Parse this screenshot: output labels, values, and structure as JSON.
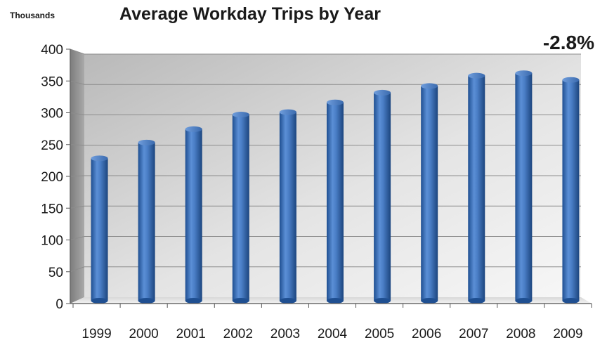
{
  "chart_data": {
    "type": "bar",
    "title": "Average Workday Trips by Year",
    "ylabel": "Thousands",
    "xlabel": "",
    "annotation": "-2.8%",
    "categories": [
      "1999",
      "2000",
      "2001",
      "2002",
      "2003",
      "2004",
      "2005",
      "2006",
      "2007",
      "2008",
      "2009"
    ],
    "values": [
      232,
      258,
      280,
      304,
      308,
      324,
      340,
      351,
      368,
      372,
      361
    ],
    "ylim": [
      0,
      400
    ],
    "yticks": [
      "0",
      "50",
      "100",
      "150",
      "200",
      "250",
      "300",
      "350",
      "400"
    ],
    "grid": true,
    "legend": "none",
    "bar_color": "#3f72b8"
  }
}
